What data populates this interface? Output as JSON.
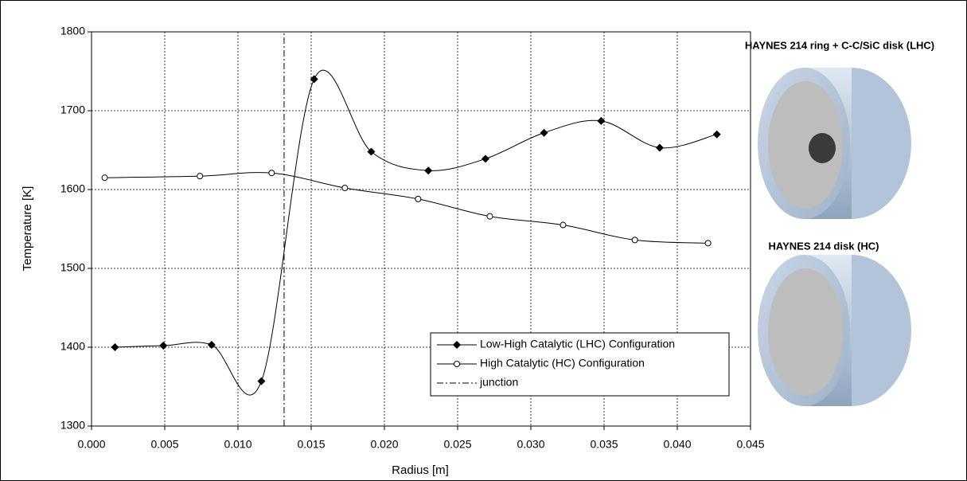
{
  "chart_data": {
    "type": "line",
    "x_label": "Radius [m]",
    "y_label": "Temperature [K]",
    "xlim": [
      0,
      0.045
    ],
    "xticks": [
      {
        "value": 0,
        "label": "0.000"
      },
      {
        "value": 0.005,
        "label": "0.005"
      },
      {
        "value": 0.01,
        "label": "0.010"
      },
      {
        "value": 0.015,
        "label": "0.015"
      },
      {
        "value": 0.02,
        "label": "0.020"
      },
      {
        "value": 0.025,
        "label": "0.025"
      },
      {
        "value": 0.03,
        "label": "0.030"
      },
      {
        "value": 0.035,
        "label": "0.035"
      },
      {
        "value": 0.04,
        "label": "0.040"
      },
      {
        "value": 0.045,
        "label": "0.045"
      }
    ],
    "ylim": [
      1300,
      1800
    ],
    "yticks": [
      1300,
      1400,
      1500,
      1600,
      1700,
      1800
    ],
    "grid": true,
    "legend": "lower right",
    "series": [
      {
        "name": "Low-High Catalytic (LHC) Configuration",
        "color": "#000000",
        "marker": "diamond",
        "x": [
          0.0016,
          0.0049,
          0.0082,
          0.0116,
          0.0152,
          0.0191,
          0.023,
          0.0269,
          0.0309,
          0.0348,
          0.0388,
          0.0427
        ],
        "values": [
          1400,
          1402,
          1403,
          1357,
          1740,
          1648,
          1624,
          1639,
          1672,
          1687,
          1653,
          1670
        ]
      },
      {
        "name": "High Catalytic (HC) Configuration",
        "color": "#000000",
        "marker": "circle",
        "x": [
          0.0009,
          0.0074,
          0.0123,
          0.0173,
          0.0223,
          0.0272,
          0.0322,
          0.0371,
          0.0421
        ],
        "values": [
          1615,
          1617,
          1621,
          1602,
          1588,
          1566,
          1555,
          1536,
          1532
        ]
      },
      {
        "name": "junction",
        "color": "#000000",
        "marker": "none",
        "dash": true,
        "x": [
          0.01315,
          0.01315
        ],
        "values": [
          1300,
          1800
        ]
      }
    ],
    "annotations": [
      "HAYNES 214 ring + C-C/SiC disk (LHC)",
      "HAYNES 214 disk (HC)"
    ]
  }
}
